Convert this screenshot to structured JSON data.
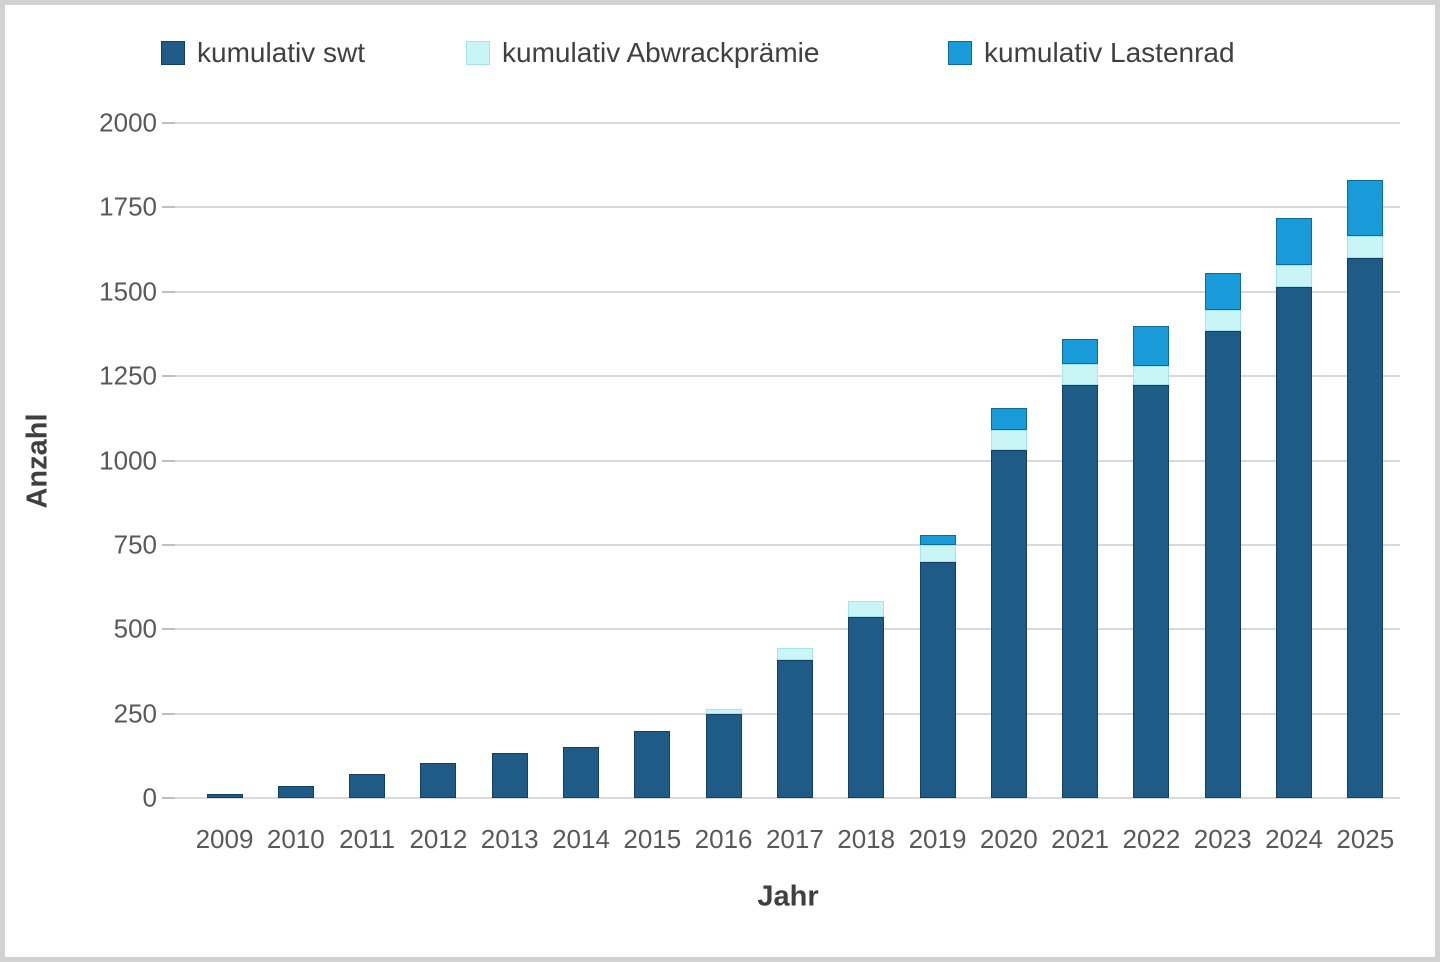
{
  "chart_data": {
    "type": "bar",
    "stacked": true,
    "title": "",
    "xlabel": "Jahr",
    "ylabel": "Anzahl",
    "ylim": [
      0,
      2000
    ],
    "yticks": [
      0,
      250,
      500,
      750,
      1000,
      1250,
      1500,
      1750,
      2000
    ],
    "grid": true,
    "legend_position": "top",
    "categories": [
      "2009",
      "2010",
      "2011",
      "2012",
      "2013",
      "2014",
      "2015",
      "2016",
      "2017",
      "2018",
      "2019",
      "2020",
      "2021",
      "2022",
      "2023",
      "2024",
      "2025"
    ],
    "series": [
      {
        "name": "kumulativ swt",
        "color": "#1E5C87",
        "border_color": "#143F61",
        "values": [
          13,
          35,
          70,
          103,
          133,
          152,
          200,
          250,
          410,
          535,
          700,
          1030,
          1225,
          1225,
          1385,
          1515,
          1600
        ]
      },
      {
        "name": "kumulativ Abwrackprämie",
        "color": "#C9F5F7",
        "border_color": "#A5E4EC",
        "values": [
          0,
          0,
          0,
          0,
          0,
          0,
          0,
          15,
          33,
          50,
          50,
          60,
          60,
          55,
          60,
          65,
          65
        ]
      },
      {
        "name": "kumulativ Lastenrad",
        "color": "#199BD9",
        "border_color": "#0F6A9C",
        "values": [
          0,
          0,
          0,
          0,
          0,
          0,
          0,
          0,
          0,
          0,
          30,
          65,
          75,
          120,
          110,
          140,
          165
        ]
      }
    ]
  },
  "style": {
    "gridline_color": "#d9d9d9",
    "tick_color": "#bfbfbf",
    "axis_text_color": "#595959",
    "label_text_color": "#3f3f3f",
    "frame_color": "#d2d2d2",
    "background": "#ffffff"
  }
}
